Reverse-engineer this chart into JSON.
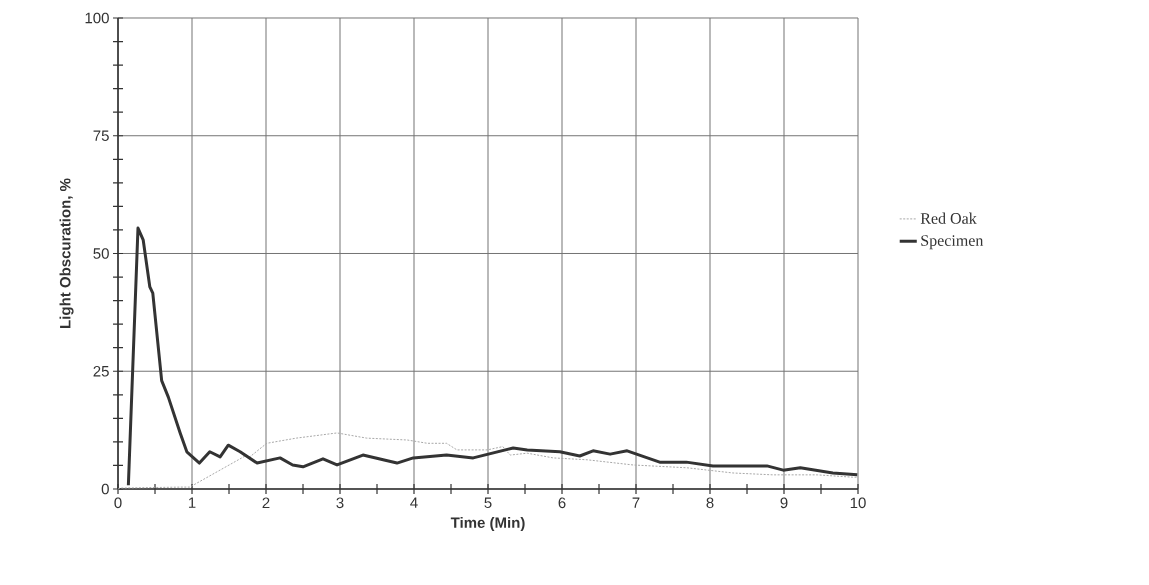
{
  "chart_data": {
    "type": "line",
    "xlabel": "Time (Min)",
    "ylabel": "Light Obscuration,  %",
    "xlim": [
      0,
      10
    ],
    "ylim": [
      0,
      100
    ],
    "xticks": [
      0,
      {
        "value": 0.5,
        "label": null
      },
      1,
      {
        "value": 1.5,
        "label": null
      },
      2,
      {
        "value": 2.5,
        "label": null
      },
      3,
      {
        "value": 3.5,
        "label": null
      },
      4,
      {
        "value": 4.5,
        "label": null
      },
      5,
      {
        "value": 5.5,
        "label": null
      },
      6,
      {
        "value": 6.5,
        "label": null
      },
      7,
      {
        "value": 7.5,
        "label": null
      },
      8,
      {
        "value": 8.5,
        "label": null
      },
      9,
      {
        "value": 9.5,
        "label": null
      },
      10
    ],
    "yticks": [
      0,
      {
        "value": 5,
        "label": null
      },
      {
        "value": 10,
        "label": null
      },
      {
        "value": 15,
        "label": null
      },
      {
        "value": 20,
        "label": null
      },
      25,
      {
        "value": 30,
        "label": null
      },
      {
        "value": 35,
        "label": null
      },
      {
        "value": 40,
        "label": null
      },
      {
        "value": 45,
        "label": null
      },
      50,
      {
        "value": 55,
        "label": null
      },
      {
        "value": 60,
        "label": null
      },
      {
        "value": 65,
        "label": null
      },
      {
        "value": 70,
        "label": null
      },
      75,
      {
        "value": 80,
        "label": null
      },
      {
        "value": 85,
        "label": null
      },
      {
        "value": 90,
        "label": null
      },
      {
        "value": 95,
        "label": null
      },
      100
    ],
    "grid": true,
    "legend": "right",
    "marker": "none",
    "series": [
      {
        "name": "Red Oak",
        "color": "#a8a8a8",
        "line_style": "dashed",
        "x": [
          0,
          0.03,
          0.84,
          0.97,
          1.74,
          1.78,
          2.01,
          2.41,
          2.96,
          3.36,
          3.91,
          4.18,
          4.44,
          4.58,
          4.99,
          5.2,
          5.3,
          5.53,
          5.88,
          6.34,
          6.96,
          7.69,
          8.31,
          8.85,
          9.45,
          9.93,
          10
        ],
        "values": [
          0,
          0.2,
          0.4,
          0.4,
          7.2,
          6.8,
          9.7,
          10.8,
          11.9,
          10.8,
          10.4,
          9.7,
          9.7,
          8.3,
          8.3,
          9,
          7.2,
          7.6,
          6.6,
          6.2,
          5.1,
          4.5,
          3.4,
          3,
          3,
          2.5,
          2.5
        ]
      },
      {
        "name": "Specimen",
        "color": "#333333",
        "line_style": "solid",
        "x": [
          0.14,
          0.27,
          0.34,
          0.43,
          0.47,
          0.59,
          0.68,
          0.84,
          0.93,
          1.1,
          1.24,
          1.38,
          1.49,
          1.65,
          1.88,
          2.19,
          2.36,
          2.5,
          2.77,
          2.96,
          3.31,
          3.77,
          3.99,
          4.44,
          4.8,
          5.34,
          5.53,
          5.97,
          6.24,
          6.42,
          6.65,
          6.88,
          7.32,
          7.68,
          8.04,
          8.77,
          8.99,
          9.22,
          9.66,
          9.99
        ],
        "values": [
          0.8,
          55.4,
          52.9,
          42.9,
          41.6,
          23,
          19.5,
          11.9,
          7.9,
          5.5,
          7.9,
          6.8,
          9.3,
          7.9,
          5.5,
          6.6,
          5.1,
          4.7,
          6.4,
          5.1,
          7.2,
          5.5,
          6.6,
          7.2,
          6.6,
          8.7,
          8.3,
          7.9,
          7,
          8.1,
          7.4,
          8.1,
          5.7,
          5.7,
          4.9,
          4.9,
          4,
          4.5,
          3.4,
          3
        ]
      }
    ]
  }
}
